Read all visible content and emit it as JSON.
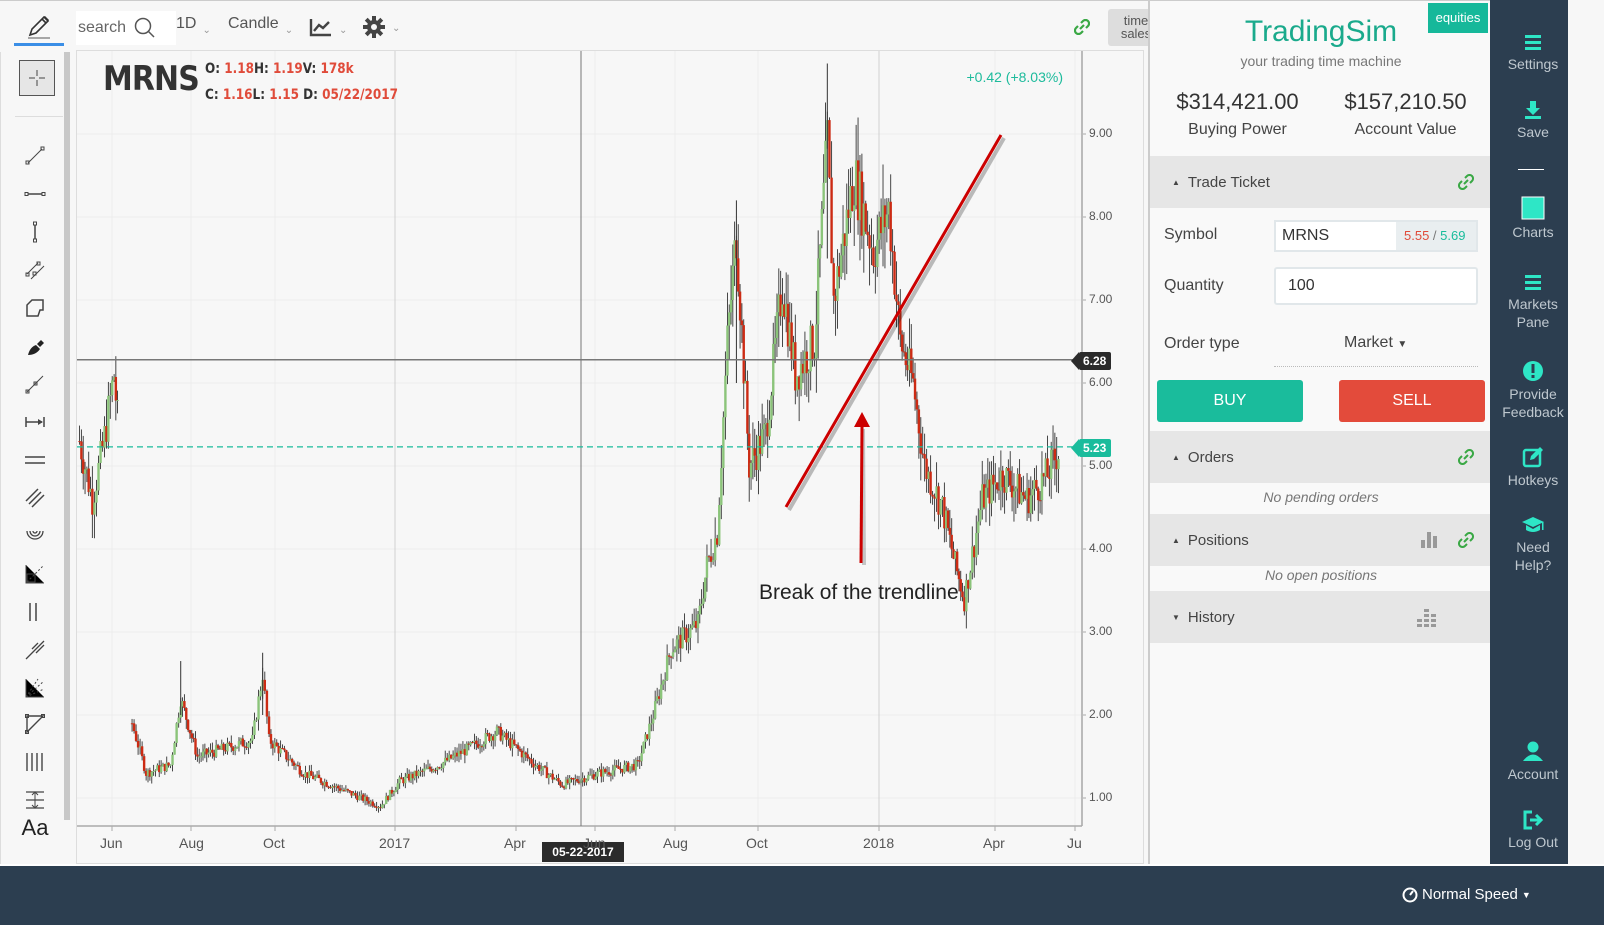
{
  "toolbar": {
    "search_placeholder": "search",
    "interval": "1D",
    "chart_type": "Candle",
    "time_sales_line1": "time",
    "time_sales_line2": "sales"
  },
  "tools": [
    {
      "name": "crosshair-tool-icon",
      "active": true
    },
    {
      "name": "trend-line-tool-icon"
    },
    {
      "name": "horizontal-segment-tool-icon"
    },
    {
      "name": "vertical-segment-tool-icon"
    },
    {
      "name": "parallel-channel-tool-icon"
    },
    {
      "name": "polyline-tool-icon"
    },
    {
      "name": "brush-tool-icon"
    },
    {
      "name": "ray-tool-icon"
    },
    {
      "name": "measure-tool-icon"
    },
    {
      "name": "horizontal-lines-tool-icon"
    },
    {
      "name": "regression-channel-tool-icon"
    },
    {
      "name": "fib-circles-tool-icon"
    },
    {
      "name": "gann-box-tool-icon"
    },
    {
      "name": "vertical-lines-tool-icon"
    },
    {
      "name": "pitchfork-tool-icon"
    },
    {
      "name": "fib-fan-tool-icon"
    },
    {
      "name": "triangle-tool-icon"
    },
    {
      "name": "time-cycles-tool-icon"
    },
    {
      "name": "price-range-tool-icon"
    },
    {
      "name": "text-tool-icon",
      "label": "Aa"
    }
  ],
  "chart": {
    "symbol": "MRNS",
    "ohlc": {
      "o_label": "O:",
      "o": "1.18",
      "h_label": "H:",
      "h": "1.19",
      "v_label": "V:",
      "v": "178k",
      "c_label": "C:",
      "c": "1.16",
      "l_label": "L:",
      "l": "1.15",
      "d_label": "D:",
      "d": "05/22/2017"
    },
    "change": "+0.42 (+8.03%)",
    "annotation": "Break of the trendline",
    "crosshair_price": "6.28",
    "last_price": "5.23",
    "crosshair_date": "05-22-2017",
    "colors": {
      "up": "#8bc47a",
      "down": "#cc2b14",
      "accent": "#1abc9c",
      "trendline": "#cc0000"
    }
  },
  "chart_data": {
    "type": "candlestick",
    "title": "MRNS 1D Candle",
    "xlabel": "",
    "ylabel": "",
    "ylim": [
      0.65,
      10.05
    ],
    "y_ticks": [
      "1.00",
      "2.00",
      "3.00",
      "4.00",
      "5.00",
      "6.00",
      "7.00",
      "8.00",
      "9.00"
    ],
    "x_ticks": [
      "Jun",
      "Aug",
      "Oct",
      "2017",
      "Apr",
      "Jun",
      "Aug",
      "Oct",
      "2018",
      "Apr",
      "Ju"
    ],
    "series": [
      {
        "name": "MRNS close (approx. anchor points)",
        "points": [
          [
            "2016-05-10",
            5.3
          ],
          [
            "2016-05-20",
            4.6
          ],
          [
            "2016-05-28",
            5.2
          ],
          [
            "2016-06-06",
            6.1
          ],
          [
            "2016-06-10",
            5.3
          ],
          [
            "2016-06-20",
            1.9
          ],
          [
            "2016-07-01",
            1.3
          ],
          [
            "2016-07-20",
            1.4
          ],
          [
            "2016-07-28",
            2.2
          ],
          [
            "2016-08-10",
            1.5
          ],
          [
            "2016-09-01",
            1.6
          ],
          [
            "2016-09-22",
            1.7
          ],
          [
            "2016-09-30",
            2.5
          ],
          [
            "2016-10-05",
            1.7
          ],
          [
            "2016-11-01",
            1.3
          ],
          [
            "2016-12-01",
            1.1
          ],
          [
            "2016-12-31",
            0.9
          ],
          [
            "2017-01-15",
            1.2
          ],
          [
            "2017-02-15",
            1.4
          ],
          [
            "2017-03-10",
            1.6
          ],
          [
            "2017-04-01",
            1.8
          ],
          [
            "2017-05-01",
            1.4
          ],
          [
            "2017-05-22",
            1.16
          ],
          [
            "2017-06-20",
            1.3
          ],
          [
            "2017-07-20",
            1.4
          ],
          [
            "2017-08-01",
            2.0
          ],
          [
            "2017-08-15",
            2.8
          ],
          [
            "2017-09-05",
            3.1
          ],
          [
            "2017-09-12",
            3.8
          ],
          [
            "2017-09-20",
            4.2
          ],
          [
            "2017-09-28",
            6.5
          ],
          [
            "2017-10-05",
            7.8
          ],
          [
            "2017-10-15",
            5.0
          ],
          [
            "2017-10-28",
            5.4
          ],
          [
            "2017-11-10",
            7.2
          ],
          [
            "2017-11-20",
            6.1
          ],
          [
            "2017-12-05",
            6.5
          ],
          [
            "2017-12-15",
            8.9
          ],
          [
            "2017-12-20",
            7.0
          ],
          [
            "2018-01-05",
            8.5
          ],
          [
            "2018-01-20",
            7.6
          ],
          [
            "2018-02-01",
            8.1
          ],
          [
            "2018-02-10",
            6.5
          ],
          [
            "2018-02-20",
            6.0
          ],
          [
            "2018-03-01",
            5.0
          ],
          [
            "2018-03-15",
            4.5
          ],
          [
            "2018-03-25",
            3.8
          ],
          [
            "2018-04-01",
            3.4
          ],
          [
            "2018-04-15",
            4.6
          ],
          [
            "2018-05-01",
            4.9
          ],
          [
            "2018-05-20",
            4.6
          ],
          [
            "2018-06-05",
            4.9
          ],
          [
            "2018-06-15",
            5.23
          ]
        ]
      }
    ],
    "annotations": [
      {
        "type": "trendline",
        "from": [
          "2017-10-18",
          4.5
        ],
        "to": [
          "2018-05-10",
          9.0
        ]
      },
      {
        "type": "arrow",
        "text": "Break of the trendline",
        "at": [
          "2017-12-20",
          4.6
        ]
      },
      {
        "type": "hline",
        "value": 6.28,
        "label": "6.28"
      },
      {
        "type": "hline-dashed",
        "value": 5.23,
        "label": "5.23"
      },
      {
        "type": "vline",
        "date": "2017-05-22",
        "label": "05-22-2017"
      }
    ],
    "grid": true
  },
  "panel": {
    "badge": "equities",
    "brand": "TradingSim",
    "tagline": "your trading time machine",
    "buying_power": "$314,421.00",
    "buying_power_label": "Buying Power",
    "account_value": "$157,210.50",
    "account_value_label": "Account Value",
    "trade_ticket_title": "Trade Ticket",
    "symbol_label": "Symbol",
    "symbol_value": "MRNS",
    "bid": "5.55",
    "ask": "5.69",
    "quantity_label": "Quantity",
    "quantity_value": "100",
    "order_type_label": "Order type",
    "order_type_value": "Market",
    "buy_label": "BUY",
    "sell_label": "SELL",
    "orders_title": "Orders",
    "orders_empty": "No pending orders",
    "positions_title": "Positions",
    "positions_empty": "No open positions",
    "history_title": "History"
  },
  "nav": {
    "settings": "Settings",
    "save": "Save",
    "charts": "Charts",
    "markets_1": "Markets",
    "markets_2": "Pane",
    "feedback_1": "Provide",
    "feedback_2": "Feedback",
    "hotkeys": "Hotkeys",
    "help_1": "Need",
    "help_2": "Help?",
    "account": "Account",
    "logout": "Log Out"
  },
  "footer": {
    "speed": "Normal Speed"
  }
}
